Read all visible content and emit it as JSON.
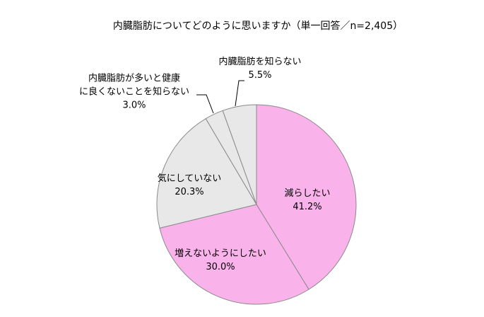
{
  "chart_data": {
    "type": "pie",
    "title": "内臓脂肪についてどのように思いますか（単一回答／n=2,405）",
    "categories": [
      "減らしたい",
      "増えないようにしたい",
      "気にしていない",
      "内臓脂肪が多いと健康\nに良くないことを知らない",
      "内臓脂肪を知らない"
    ],
    "values": [
      41.2,
      30.0,
      20.3,
      3.0,
      5.5
    ],
    "value_labels": [
      "41.2%",
      "30.0%",
      "20.3%",
      "3.0%",
      "5.5%"
    ],
    "colors": [
      "#f9b2ea",
      "#f9b2ea",
      "#e8e8e8",
      "#e8e8e8",
      "#e8e8e8"
    ]
  }
}
